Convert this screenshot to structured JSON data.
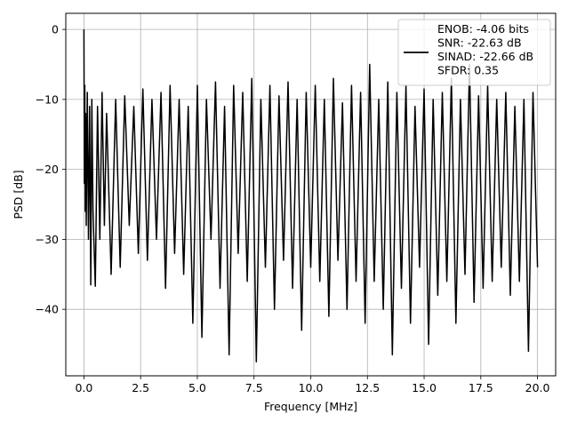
{
  "chart_data": {
    "type": "line",
    "xlabel": "Frequency [MHz]",
    "ylabel": "PSD [dB]",
    "xlim": [
      -0.8,
      20.8
    ],
    "ylim": [
      -49.5,
      2.3
    ],
    "xticks": [
      0.0,
      2.5,
      5.0,
      7.5,
      10.0,
      12.5,
      15.0,
      17.5,
      20.0
    ],
    "xtick_labels": [
      "0.0",
      "2.5",
      "5.0",
      "7.5",
      "10.0",
      "12.5",
      "15.0",
      "17.5",
      "20.0"
    ],
    "yticks": [
      0,
      -10,
      -20,
      -30,
      -40
    ],
    "ytick_labels": [
      "0",
      "−10",
      "−20",
      "−30",
      "−40"
    ],
    "grid": true,
    "legend": {
      "location": "upper-right",
      "entries": [
        "ENOB: -4.06 bits",
        "SNR: -22.63 dB",
        "SINAD: -22.66 dB",
        "SFDR: 0.35"
      ]
    },
    "series": [
      {
        "color": "#000000",
        "x": [
          0.0,
          0.02,
          0.04,
          0.06,
          0.08,
          0.1,
          0.15,
          0.2,
          0.25,
          0.3,
          0.35,
          0.4,
          0.5,
          0.6,
          0.7,
          0.8,
          0.9,
          1.0,
          1.2,
          1.4,
          1.6,
          1.8,
          2.0,
          2.2,
          2.4,
          2.6,
          2.8,
          3.0,
          3.2,
          3.4,
          3.6,
          3.8,
          4.0,
          4.2,
          4.4,
          4.6,
          4.8,
          5.0,
          5.2,
          5.4,
          5.6,
          5.8,
          6.0,
          6.2,
          6.4,
          6.6,
          6.8,
          7.0,
          7.2,
          7.4,
          7.6,
          7.8,
          8.0,
          8.2,
          8.4,
          8.6,
          8.8,
          9.0,
          9.2,
          9.4,
          9.6,
          9.8,
          10.0,
          10.2,
          10.4,
          10.6,
          10.8,
          11.0,
          11.2,
          11.4,
          11.6,
          11.8,
          12.0,
          12.2,
          12.4,
          12.6,
          12.8,
          13.0,
          13.2,
          13.4,
          13.6,
          13.8,
          14.0,
          14.2,
          14.4,
          14.6,
          14.8,
          15.0,
          15.2,
          15.4,
          15.6,
          15.8,
          16.0,
          16.2,
          16.4,
          16.6,
          16.8,
          17.0,
          17.2,
          17.4,
          17.6,
          17.8,
          18.0,
          18.2,
          18.4,
          18.6,
          18.8,
          19.0,
          19.2,
          19.4,
          19.6,
          19.8,
          20.0
        ],
        "y": [
          0.0,
          -22.0,
          -8.0,
          -26.0,
          -12.0,
          -28.0,
          -9.0,
          -30.0,
          -11.0,
          -36.5,
          -10.0,
          -26.0,
          -36.7,
          -11.0,
          -30.0,
          -9.0,
          -28.0,
          -12.0,
          -35.0,
          -10.0,
          -34.0,
          -9.5,
          -28.0,
          -11.0,
          -32.0,
          -8.5,
          -33.0,
          -10.0,
          -30.0,
          -9.0,
          -37.0,
          -8.0,
          -32.0,
          -10.0,
          -35.0,
          -11.0,
          -42.0,
          -8.0,
          -44.0,
          -10.0,
          -30.0,
          -7.5,
          -37.0,
          -11.0,
          -46.5,
          -8.0,
          -32.0,
          -9.0,
          -36.0,
          -7.0,
          -47.5,
          -10.0,
          -34.0,
          -8.0,
          -40.0,
          -9.5,
          -33.0,
          -7.5,
          -37.0,
          -10.0,
          -43.0,
          -9.0,
          -34.0,
          -8.0,
          -36.0,
          -10.0,
          -41.0,
          -7.0,
          -33.0,
          -10.5,
          -40.0,
          -8.0,
          -36.0,
          -9.0,
          -42.0,
          -5.0,
          -36.0,
          -10.0,
          -40.0,
          -7.5,
          -46.5,
          -9.0,
          -37.0,
          -8.0,
          -42.0,
          -11.0,
          -34.0,
          -8.5,
          -45.0,
          -10.0,
          -38.0,
          -9.0,
          -36.0,
          -7.0,
          -42.0,
          -10.0,
          -35.0,
          -5.0,
          -39.0,
          -9.5,
          -37.0,
          -8.0,
          -36.0,
          -10.0,
          -34.0,
          -9.0,
          -38.0,
          -11.0,
          -36.0,
          -10.0,
          -46.0,
          -9.0,
          -34.0
        ]
      }
    ]
  }
}
